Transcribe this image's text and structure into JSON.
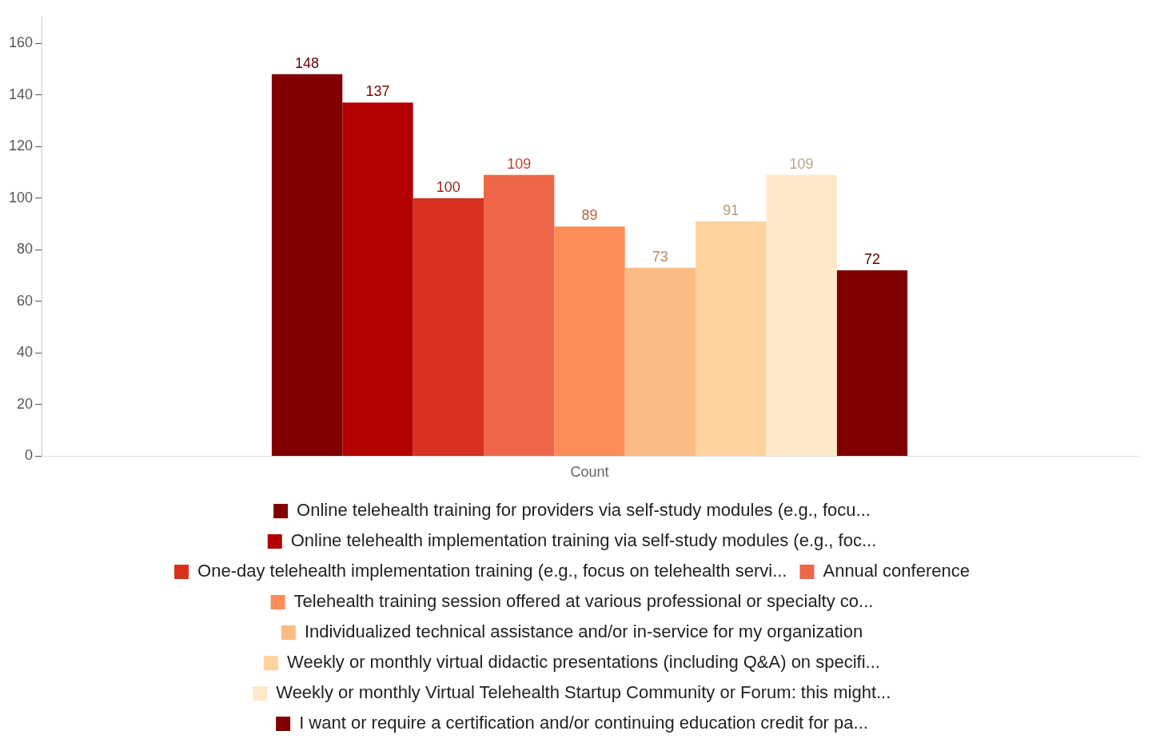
{
  "chart_data": {
    "type": "bar",
    "categories": [
      "Count"
    ],
    "series": [
      {
        "name": "Online telehealth training for providers via self-study modules (e.g., focu...",
        "color": "#800000",
        "values": [
          148
        ]
      },
      {
        "name": "Online telehealth implementation training via self-study modules (e.g., foc...",
        "color": "#b30000",
        "values": [
          137
        ]
      },
      {
        "name": "One-day telehealth implementation training (e.g., focus on telehealth servi...",
        "color": "#d7301f",
        "values": [
          100
        ]
      },
      {
        "name": "Annual conference",
        "color": "#ef6548",
        "values": [
          109
        ]
      },
      {
        "name": "Telehealth training session offered at various professional or specialty co...",
        "color": "#fc8d59",
        "values": [
          89
        ]
      },
      {
        "name": "Individualized technical assistance and/or in-service for my organization",
        "color": "#fdbb84",
        "values": [
          73
        ]
      },
      {
        "name": "Weekly or monthly virtual didactic presentations (including Q&A) on specifi...",
        "color": "#fdd49e",
        "values": [
          91
        ]
      },
      {
        "name": "Weekly or monthly Virtual Telehealth Startup Community or Forum: this might...",
        "color": "#fee8c8",
        "values": [
          109
        ]
      },
      {
        "name": "I want or require a certification and/or continuing education credit for pa...",
        "color": "#800000",
        "values": [
          72
        ]
      }
    ],
    "ylim": [
      0,
      170
    ],
    "yticks": [
      0,
      20,
      40,
      60,
      80,
      100,
      120,
      140,
      160
    ],
    "grid": false,
    "legend": "bottom",
    "data_labels": true
  }
}
